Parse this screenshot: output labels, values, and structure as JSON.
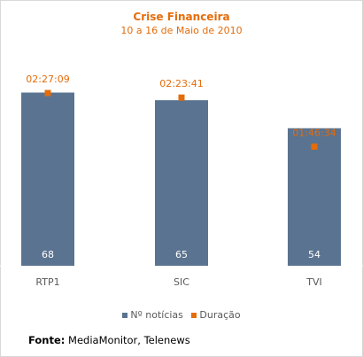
{
  "chart_data": {
    "type": "bar",
    "title": "Crise Financeira",
    "subtitle": "10 a 16 de Maio de 2010",
    "categories": [
      "RTP1",
      "SIC",
      "TVI"
    ],
    "series": [
      {
        "name": "Nº notícias",
        "values": [
          68,
          65,
          54
        ],
        "color": "#5a7390"
      },
      {
        "name": "Duração",
        "values": [
          "02:27:09",
          "02:23:41",
          "01:46:34"
        ],
        "seconds": [
          8829,
          8621,
          6394
        ],
        "color": "#e46c0a"
      }
    ],
    "bar_label_color": "#ffffff",
    "duration_label_color": "#e46c0a",
    "legend_position": "bottom",
    "grid": false
  },
  "source": {
    "label": "Fonte:",
    "text": "MediaMonitor, Telenews"
  },
  "colors": {
    "frame_border": "#d9d9d9",
    "title": "#e46c0a"
  }
}
